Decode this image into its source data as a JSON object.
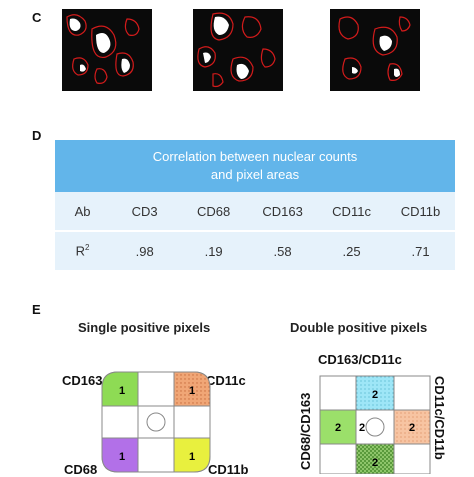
{
  "panels": {
    "c": "C",
    "d": "D",
    "e": "E"
  },
  "table": {
    "title_line1": "Correlation between nuclear counts",
    "title_line2": "and pixel areas",
    "header": [
      "Ab",
      "CD3",
      "CD68",
      "CD163",
      "CD11c",
      "CD11b"
    ],
    "row_label": "R",
    "row_label_sup": "2",
    "values": [
      ".98",
      ".19",
      ".58",
      ".25",
      ".71"
    ]
  },
  "single": {
    "title": "Single positive pixels",
    "labels": {
      "top_left": "CD163",
      "top_right": "CD11c",
      "bottom_left": "CD68",
      "bottom_right": "CD11b"
    },
    "counts": {
      "top_left": "1",
      "top_right": "1",
      "bottom_left": "1",
      "bottom_right": "1"
    }
  },
  "double": {
    "title": "Double positive pixels",
    "labels": {
      "top": "CD163/CD11c",
      "left": "CD68/CD163",
      "right": "CD11c/CD11b"
    },
    "counts": {
      "top": "2",
      "left": "2",
      "right": "2",
      "bottom": "2",
      "center_left": "2"
    }
  },
  "colors": {
    "header_blue": "#62b5ea",
    "row_blue": "#e6f2fb",
    "green": "#8edb54",
    "orange": "#f0a676",
    "purple": "#b270e8",
    "yellow": "#e8f03e",
    "cyan": "#9ee6f7",
    "peach": "#f7c4a2",
    "dark_green": "#5a9a3c",
    "outline_red": "#d21b1b"
  }
}
